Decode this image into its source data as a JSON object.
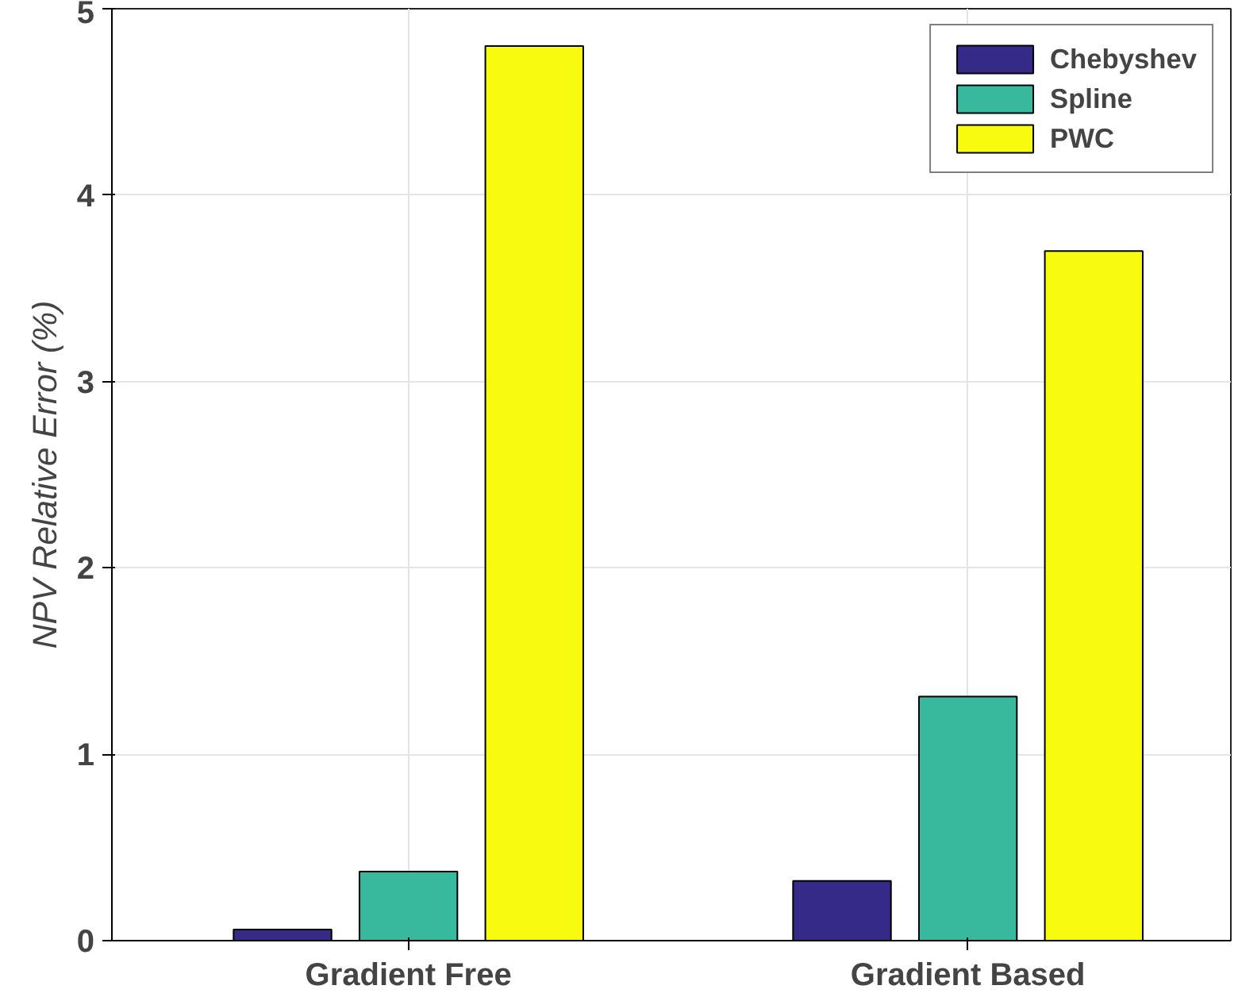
{
  "chart_data": {
    "type": "bar",
    "ylabel": "NPV Relative Error (%)",
    "categories": [
      "Gradient Free",
      "Gradient Based"
    ],
    "series": [
      {
        "name": "Chebyshev",
        "color": "#352a87",
        "values": [
          0.06,
          0.32
        ]
      },
      {
        "name": "Spline",
        "color": "#38b99e",
        "values": [
          0.37,
          1.31
        ]
      },
      {
        "name": "PWC",
        "color": "#f9fb0e",
        "values": [
          4.8,
          3.7
        ]
      }
    ],
    "ylim": [
      0,
      5
    ],
    "yticks": [
      0,
      1,
      2,
      3,
      4,
      5
    ],
    "grid": true,
    "legend": "top right"
  }
}
